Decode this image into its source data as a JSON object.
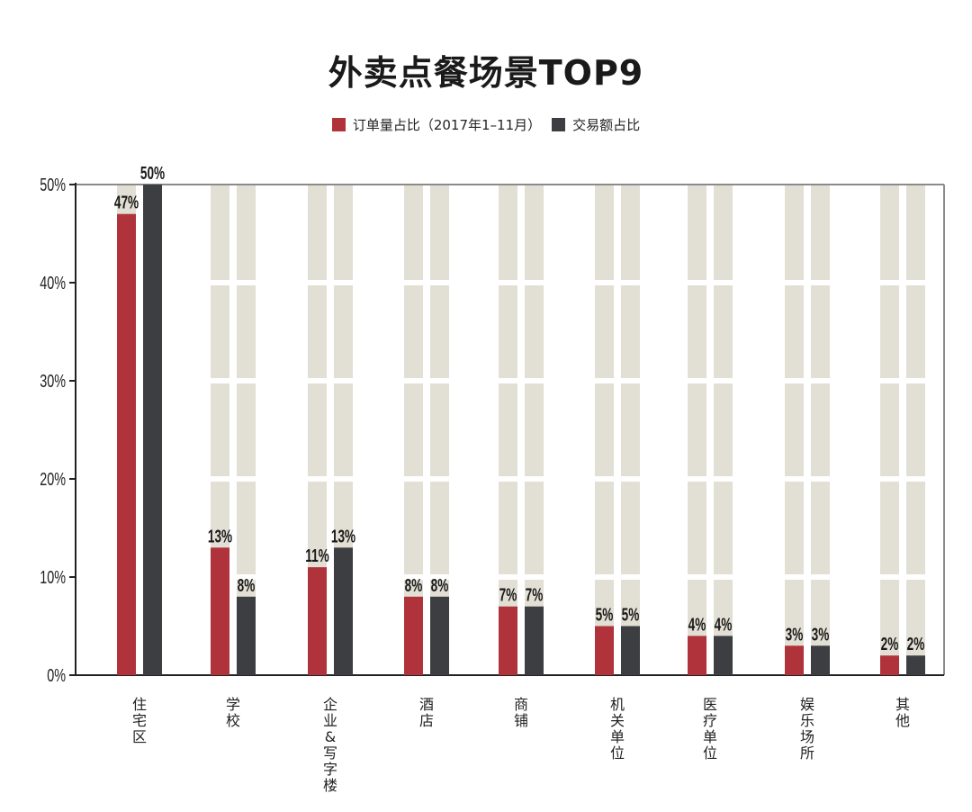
{
  "chart_data": {
    "type": "bar",
    "title": "外卖点餐场景TOP9",
    "categories": [
      "住宅区",
      "学校",
      "企业&写字楼",
      "酒店",
      "商铺",
      "机关单位",
      "医疗单位",
      "娱乐场所",
      "其他"
    ],
    "series": [
      {
        "name": "订单量占比（2017年1–11月）",
        "color": "#b0323a",
        "values": [
          47,
          13,
          11,
          8,
          7,
          5,
          4,
          3,
          2
        ],
        "labels": [
          "47%",
          "13%",
          "11%",
          "8%",
          "7%",
          "5%",
          "4%",
          "3%",
          "2%"
        ]
      },
      {
        "name": "交易额占比",
        "color": "#3c3e42",
        "values": [
          50,
          8,
          13,
          8,
          7,
          5,
          4,
          3,
          2
        ],
        "labels": [
          "50%",
          "8%",
          "13%",
          "8%",
          "7%",
          "5%",
          "4%",
          "3%",
          "2%"
        ]
      }
    ],
    "yticks": [
      "0%",
      "10%",
      "20%",
      "30%",
      "40%",
      "50%"
    ],
    "ylim": [
      0,
      50
    ],
    "grid": false,
    "legend_position": "top-center",
    "background_bar_color": "#e2dfd4"
  }
}
